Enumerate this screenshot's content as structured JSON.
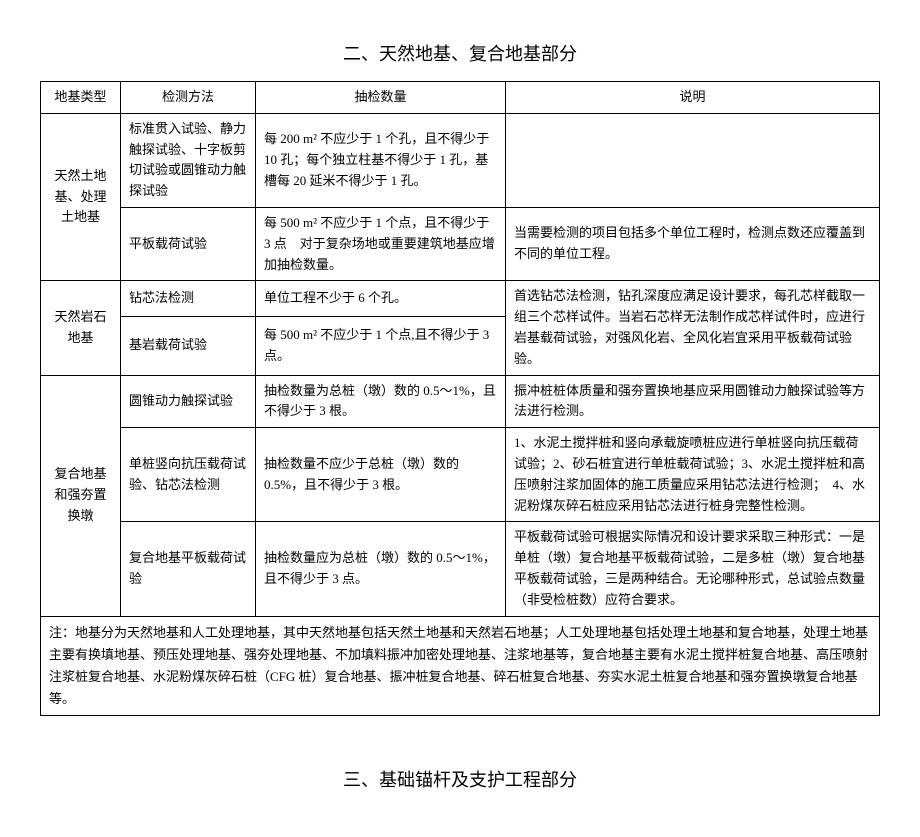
{
  "sections": {
    "title2": "二、天然地基、复合地基部分",
    "title3": "三、基础锚杆及支护工程部分"
  },
  "headers": {
    "type": "地基类型",
    "method": "检测方法",
    "quantity": "抽检数量",
    "note": "说明"
  },
  "rows": {
    "r1_type": "天然土地基、处理土地基",
    "r1_method": "标准贯入试验、静力触探试验、十字板剪切试验或圆锥动力触探试验",
    "r1_qty": "    每 200 m² 不应少于 1 个孔，且不得少于 10 孔；每个独立柱基不得少于 1 孔，基槽每 20 延米不得少于 1 孔。",
    "r1_note": "",
    "r2_method": "平板载荷试验",
    "r2_qty": "    每 500 m² 不应少于 1 个点，且不得少于 3 点　对于复杂场地或重要建筑地基应增加抽检数量。",
    "r2_note": "    当需要检测的项目包括多个单位工程时，检测点数还应覆盖到不同的单位工程。",
    "r3_type": "天然岩石地基",
    "r3_method": "钻芯法检测",
    "r3_qty": "    单位工程不少于 6 个孔。",
    "r3_note": "    首选钻芯法检测，钻孔深度应满足设计要求，每孔芯样截取一组三个芯样试件。当岩石芯样无法制作成芯样试件时，应进行岩基载荷试验，对强风化岩、全风化岩宜采用平板载荷试验验。",
    "r4_method": "基岩载荷试验",
    "r4_qty": "    每 500 m² 不应少于 1 个点,且不得少于 3 点。",
    "r5_type": "复合地基和强夯置换墩",
    "r5_method": "圆锥动力触探试验",
    "r5_qty": "    抽检数量为总桩（墩）数的 0.5～1%，且不得少于 3 根。",
    "r5_note": "    振冲桩桩体质量和强夯置换地基应采用圆锥动力触探试验等方法进行检测。",
    "r6_method": "单桩竖向抗压载荷试验、钻芯法检测",
    "r6_qty": "    抽检数量不应少于总桩（墩）数的 0.5%，且不得少于 3 根。",
    "r6_note": "    1、水泥土搅拌桩和竖向承载旋喷桩应进行单桩竖向抗压载荷试验；2、砂石桩宜进行单桩载荷试验；3、水泥土搅拌桩和高压喷射注浆加固体的施工质量应采用钻芯法进行检测；　4、水泥粉煤灰碎石桩应采用钻芯法进行桩身完整性检测。",
    "r7_method": "复合地基平板载荷试验",
    "r7_qty": "    抽检数量应为总桩（墩）数的 0.5～1%，且不得少于 3 点。",
    "r7_note": "    平板载荷试验可根据实际情况和设计要求采取三种形式：一是单桩（墩）复合地基平板载荷试验，二是多桩（墩）复合地基平板载荷试验，三是两种结合。无论哪种形式，总试验点数量（非受检桩数）应符合要求。"
  },
  "footer": "注：地基分为天然地基和人工处理地基，其中天然地基包括天然土地基和天然岩石地基；人工处理地基包括处理土地基和复合地基，处理土地基主要有换填地基、预压处理地基、强夯处理地基、不加填料振冲加密处理地基、注浆地基等，复合地基主要有水泥土搅拌桩复合地基、高压喷射注浆桩复合地基、水泥粉煤灰碎石桩（CFG 桩）复合地基、振冲桩复合地基、碎石桩复合地基、夯实水泥土桩复合地基和强夯置换墩复合地基等。"
}
